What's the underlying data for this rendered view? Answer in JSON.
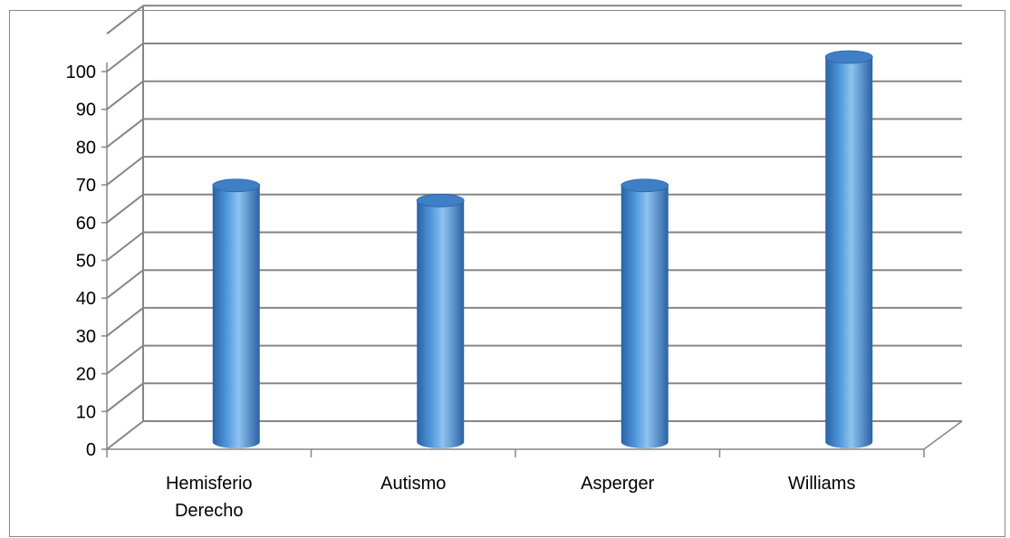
{
  "chart_data": {
    "type": "bar",
    "categories": [
      [
        "Hemisferio",
        "Derecho"
      ],
      [
        "Autismo"
      ],
      [
        "Asperger"
      ],
      [
        "Williams"
      ]
    ],
    "values": [
      66,
      62,
      66,
      100
    ],
    "title": "",
    "xlabel": "",
    "ylabel": "",
    "ylim": [
      0,
      100
    ],
    "ytick_step": 10,
    "grid": true,
    "legend": "none",
    "colors": {
      "bar_light": "#8ec3ef",
      "bar_mid": "#4f97dc",
      "bar_dark": "#2a62a4",
      "bar_top": "#3f7fc5",
      "grid": "#868686",
      "axis": "#868686"
    }
  }
}
